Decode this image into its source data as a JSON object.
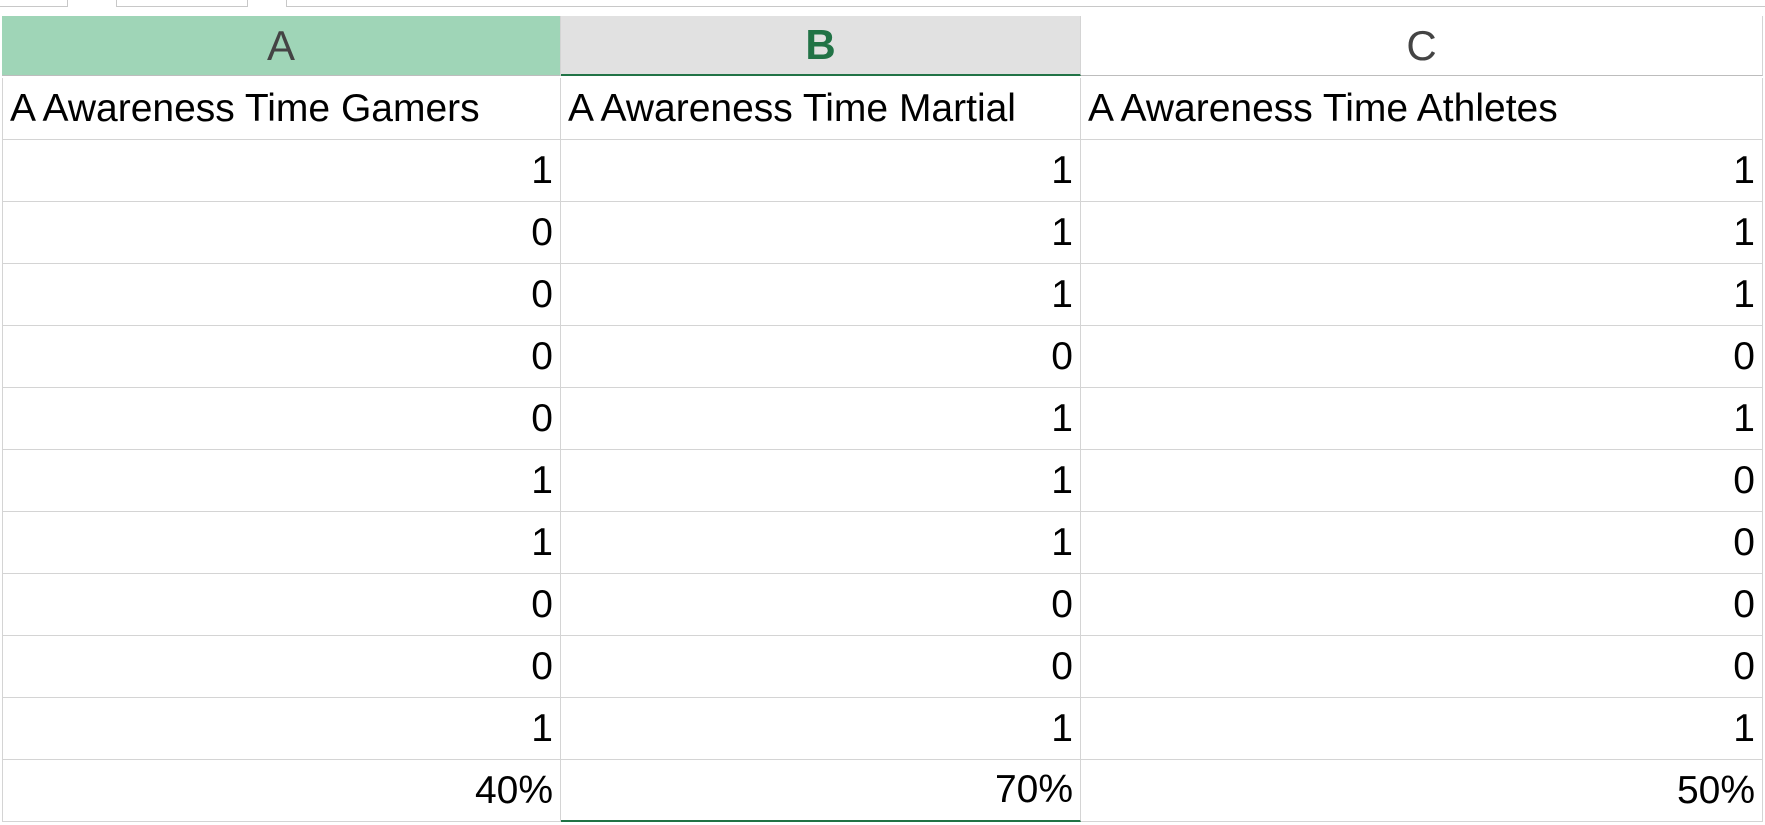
{
  "columns": [
    {
      "letter": "A"
    },
    {
      "letter": "B"
    },
    {
      "letter": "C"
    }
  ],
  "headers": [
    "A Awareness Time Gamers",
    "A Awareness Time Martial",
    "A Awareness Time Athletes"
  ],
  "rows": [
    [
      "1",
      "1",
      "1"
    ],
    [
      "0",
      "1",
      "1"
    ],
    [
      "0",
      "1",
      "1"
    ],
    [
      "0",
      "0",
      "0"
    ],
    [
      "0",
      "1",
      "1"
    ],
    [
      "1",
      "1",
      "0"
    ],
    [
      "1",
      "1",
      "0"
    ],
    [
      "0",
      "0",
      "0"
    ],
    [
      "0",
      "0",
      "0"
    ],
    [
      "1",
      "1",
      "1"
    ]
  ],
  "totals": [
    "40%",
    "70%",
    "50%"
  ],
  "colors": {
    "selected_column_header_bg": "#9fd5b7",
    "active_column_header_bg": "#e1e1e1",
    "accent_green": "#217346",
    "gridline": "#d4d4d4"
  }
}
